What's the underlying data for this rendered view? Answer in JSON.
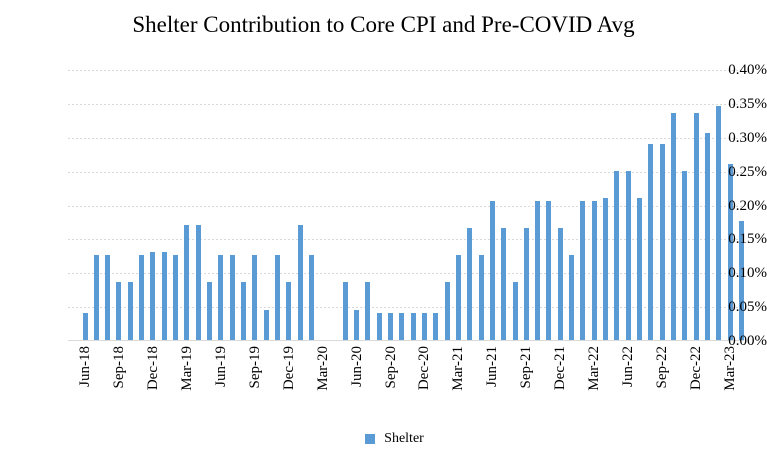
{
  "colors": {
    "bar": "#5B9BD5",
    "gridline": "#D9D9D9",
    "axis_line": "#D9D9D9",
    "background": "#FFFFFF",
    "text": "#000000"
  },
  "chart_data": {
    "type": "bar",
    "title": "Shelter Contribution to Core CPI and Pre-COVID Avg",
    "xlabel": "",
    "ylabel": "",
    "ylim": [
      0,
      0.4
    ],
    "grid": "horizontal-dashed",
    "legend_position": "bottom",
    "categories": [
      "Jun-18",
      "Jul-18",
      "Aug-18",
      "Sep-18",
      "Oct-18",
      "Nov-18",
      "Dec-18",
      "Jan-19",
      "Feb-19",
      "Mar-19",
      "Apr-19",
      "May-19",
      "Jun-19",
      "Jul-19",
      "Aug-19",
      "Sep-19",
      "Oct-19",
      "Nov-19",
      "Dec-19",
      "Jan-20",
      "Feb-20",
      "Mar-20",
      "Apr-20",
      "May-20",
      "Jun-20",
      "Jul-20",
      "Aug-20",
      "Sep-20",
      "Oct-20",
      "Nov-20",
      "Dec-20",
      "Jan-21",
      "Feb-21",
      "Mar-21",
      "Apr-21",
      "May-21",
      "Jun-21",
      "Jul-21",
      "Aug-21",
      "Sep-21",
      "Oct-21",
      "Nov-21",
      "Dec-21",
      "Jan-22",
      "Feb-22",
      "Mar-22",
      "Apr-22",
      "May-22",
      "Jun-22",
      "Jul-22",
      "Aug-22",
      "Sep-22",
      "Oct-22",
      "Nov-22",
      "Dec-22",
      "Jan-23",
      "Feb-23",
      "Mar-23",
      "Apr-23"
    ],
    "series": [
      {
        "name": "Shelter",
        "color": "#5B9BD5",
        "values": [
          0.04,
          0.125,
          0.125,
          0.085,
          0.085,
          0.125,
          0.13,
          0.13,
          0.125,
          0.17,
          0.17,
          0.085,
          0.125,
          0.125,
          0.085,
          0.125,
          0.045,
          0.125,
          0.085,
          0.17,
          0.125,
          0.0,
          0.0,
          0.085,
          0.045,
          0.085,
          0.04,
          0.04,
          0.04,
          0.04,
          0.04,
          0.04,
          0.085,
          0.125,
          0.165,
          0.125,
          0.205,
          0.165,
          0.085,
          0.165,
          0.205,
          0.205,
          0.165,
          0.125,
          0.205,
          0.205,
          0.21,
          0.25,
          0.25,
          0.21,
          0.29,
          0.29,
          0.335,
          0.25,
          0.335,
          0.305,
          0.345,
          0.26,
          0.175
        ]
      }
    ],
    "x_tick_labels": [
      "Jun-18",
      "Sep-18",
      "Dec-18",
      "Mar-19",
      "Jun-19",
      "Sep-19",
      "Dec-19",
      "Mar-20",
      "Jun-20",
      "Sep-20",
      "Dec-20",
      "Mar-21",
      "Jun-21",
      "Sep-21",
      "Dec-21",
      "Mar-22",
      "Jun-22",
      "Sep-22",
      "Dec-22",
      "Mar-23"
    ],
    "x_tick_step_months": 3,
    "y_tick_labels": [
      "0.00%",
      "0.05%",
      "0.10%",
      "0.15%",
      "0.20%",
      "0.25%",
      "0.30%",
      "0.35%",
      "0.40%"
    ]
  }
}
